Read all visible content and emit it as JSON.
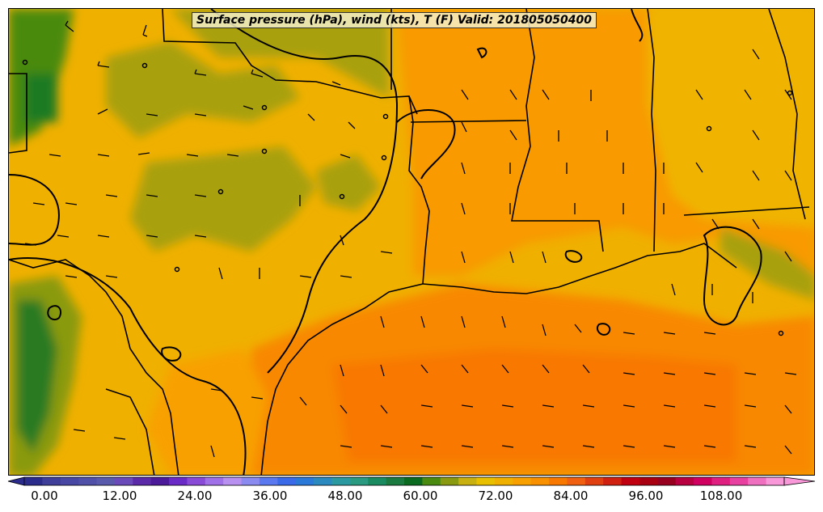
{
  "title": "Surface pressure (hPa), wind (kts), T (F) Valid: 201805050400",
  "colorbar": {
    "min": 0,
    "max": 114,
    "step": 3,
    "tick_labels": [
      "0.00",
      "12.00",
      "24.00",
      "36.00",
      "48.00",
      "60.00",
      "72.00",
      "84.00",
      "96.00",
      "108.00"
    ],
    "colors": [
      "#2b2b8c",
      "#3f3f9a",
      "#4848a4",
      "#5050a8",
      "#5a5aac",
      "#6a4ab8",
      "#5a2aa8",
      "#4a1a9a",
      "#6a2ac8",
      "#8a4ad8",
      "#a070e8",
      "#b890f0",
      "#8a8af0",
      "#5a78f0",
      "#3a6ae8",
      "#2a78d8",
      "#2a8ac0",
      "#2a9aa0",
      "#2a9a80",
      "#1a8a60",
      "#1a7a40",
      "#0a6a20",
      "#4a8a10",
      "#8a9a10",
      "#c8b010",
      "#e8c000",
      "#f0b000",
      "#f8a000",
      "#f89000",
      "#f87800",
      "#f06010",
      "#e04010",
      "#d02010",
      "#c00010",
      "#a80010",
      "#980020",
      "#b80040",
      "#d00060",
      "#e02080",
      "#e840a0",
      "#f070c0",
      "#f898d8"
    ]
  },
  "map": {
    "temperature_field": "surface T (F) shaded",
    "pressure_contours": "surface pressure (hPa)",
    "wind_barbs": "wind (kts)"
  }
}
